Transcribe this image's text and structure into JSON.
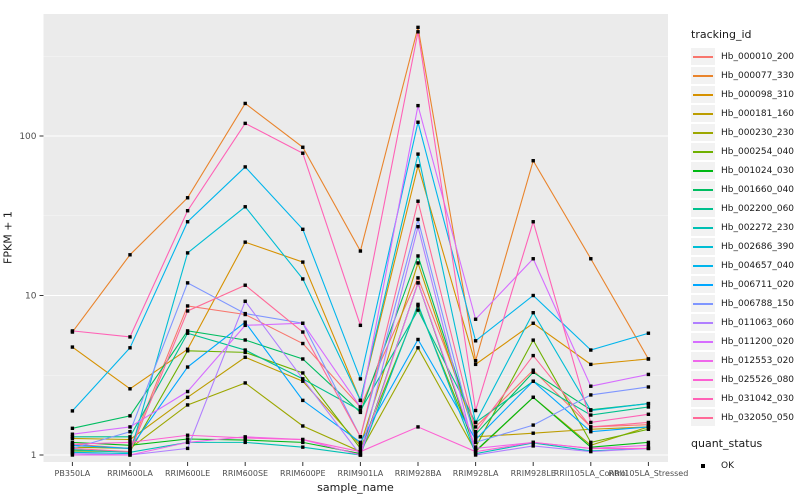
{
  "chart_data": {
    "type": "line",
    "title": "",
    "xlabel": "sample_name",
    "ylabel": "FPKM + 1",
    "y_scale": "log10",
    "y_ticks": [
      1,
      10,
      100
    ],
    "y_minor_ticks": [
      3.162,
      31.62,
      316.2
    ],
    "ylim": [
      1,
      600
    ],
    "grid": true,
    "panel_bg": "#EBEBEB",
    "grid_major_color": "#FFFFFF",
    "grid_minor_color": "#F7F7F7",
    "tick_label_color": "#4d4d4d",
    "point_color": "#000000",
    "categories": [
      "PB350LA",
      "RRIM600LA",
      "RRIM600LE",
      "RRIM600SE",
      "RRIM600PE",
      "RRIM901LA",
      "RRIM928BA",
      "RRIM928LA",
      "RRIM928LE",
      "RRII105LA_Control",
      "RRII105LA_Stressed"
    ],
    "legend": {
      "title": "tracking_id",
      "position": "right"
    },
    "quant_legend": {
      "title": "quant_status",
      "items": [
        {
          "label": "OK",
          "marker": "black-square"
        }
      ]
    },
    "series": [
      {
        "name": "Hb_000010_200",
        "color": "#F8766D",
        "values": [
          1.17,
          1.1,
          8.6,
          7.6,
          5.0,
          2.0,
          12.9,
          1.5,
          3.4,
          1.5,
          1.55
        ]
      },
      {
        "name": "Hb_000077_330",
        "color": "#E9842C",
        "values": [
          5.9,
          18,
          41,
          160,
          85,
          19,
          480,
          3.9,
          70,
          17,
          4.0
        ]
      },
      {
        "name": "Hb_000098_310",
        "color": "#D69100",
        "values": [
          4.75,
          2.6,
          4.6,
          21.6,
          16.2,
          2.2,
          65,
          3.7,
          6.7,
          3.7,
          4.0
        ]
      },
      {
        "name": "Hb_000181_160",
        "color": "#BC9D00",
        "values": [
          1.27,
          1.25,
          2.3,
          4.1,
          2.9,
          1.15,
          16,
          1.3,
          1.37,
          1.45,
          1.5
        ]
      },
      {
        "name": "Hb_000230_230",
        "color": "#9CA700",
        "values": [
          1.12,
          1.1,
          2.06,
          2.83,
          1.52,
          1.05,
          4.7,
          1.05,
          2.3,
          1.15,
          1.5
        ]
      },
      {
        "name": "Hb_000254_040",
        "color": "#6FB000",
        "values": [
          1.06,
          1.05,
          4.5,
          4.4,
          3.27,
          1.1,
          8.6,
          1.12,
          5.25,
          1.2,
          1.45
        ]
      },
      {
        "name": "Hb_001024_030",
        "color": "#00B813",
        "values": [
          1.2,
          1.15,
          1.26,
          1.24,
          1.2,
          1.02,
          12,
          1.06,
          2.3,
          1.12,
          1.2
        ]
      },
      {
        "name": "Hb_001660_040",
        "color": "#00BD61",
        "values": [
          1.47,
          1.76,
          6.0,
          5.26,
          4.0,
          1.85,
          17.7,
          1.35,
          3.3,
          1.92,
          2.1
        ]
      },
      {
        "name": "Hb_002200_060",
        "color": "#00C08E",
        "values": [
          1.3,
          1.3,
          5.8,
          4.55,
          3.0,
          1.9,
          8.1,
          1.6,
          2.9,
          1.78,
          2.0
        ]
      },
      {
        "name": "Hb_002272_230",
        "color": "#00C0B4",
        "values": [
          1.08,
          1.04,
          1.2,
          1.2,
          1.12,
          1.0,
          8.8,
          1.02,
          1.19,
          1.06,
          1.1
        ]
      },
      {
        "name": "Hb_002686_390",
        "color": "#00BDD4",
        "values": [
          1.04,
          1.02,
          18.5,
          36,
          12.7,
          2.2,
          77,
          1.6,
          7.8,
          1.9,
          2.1
        ]
      },
      {
        "name": "Hb_004657_040",
        "color": "#00B5EC",
        "values": [
          1.89,
          4.7,
          29,
          64,
          26,
          3.0,
          122,
          5.2,
          10,
          4.55,
          5.8
        ]
      },
      {
        "name": "Hb_006711_020",
        "color": "#00A7FF",
        "values": [
          1.15,
          1.1,
          3.56,
          6.8,
          2.2,
          1.2,
          5.3,
          1.25,
          2.9,
          1.4,
          1.5
        ]
      },
      {
        "name": "Hb_006788_150",
        "color": "#7F96FF",
        "values": [
          1.1,
          1.4,
          12,
          7.7,
          6.7,
          1.3,
          30,
          1.2,
          1.54,
          2.38,
          2.67
        ]
      },
      {
        "name": "Hb_011063_060",
        "color": "#B07FFF",
        "values": [
          1.02,
          1.0,
          1.1,
          9.2,
          3.0,
          1.0,
          27,
          1.0,
          1.14,
          1.05,
          1.1
        ]
      },
      {
        "name": "Hb_011200_020",
        "color": "#D66DFF",
        "values": [
          1.35,
          1.5,
          2.5,
          6.5,
          6.7,
          2.0,
          155,
          7.1,
          17,
          2.7,
          3.2
        ]
      },
      {
        "name": "Hb_012553_020",
        "color": "#EF67EB",
        "values": [
          1.0,
          1.0,
          1.2,
          1.3,
          1.25,
          1.0,
          12,
          1.1,
          1.2,
          1.1,
          1.15
        ]
      },
      {
        "name": "Hb_025526_080",
        "color": "#FD61D3",
        "values": [
          1.17,
          1.2,
          1.33,
          1.28,
          1.25,
          1.05,
          1.5,
          1.05,
          1.2,
          1.1,
          1.1
        ]
      },
      {
        "name": "Hb_031042_030",
        "color": "#FF62B6",
        "values": [
          6.0,
          5.5,
          34,
          120,
          78,
          6.5,
          450,
          1.9,
          29,
          1.6,
          1.8
        ]
      },
      {
        "name": "Hb_032050_050",
        "color": "#FF6A98",
        "values": [
          1.1,
          1.05,
          8.0,
          11.6,
          5.9,
          1.3,
          39,
          1.4,
          4.2,
          1.5,
          1.6
        ]
      }
    ]
  }
}
